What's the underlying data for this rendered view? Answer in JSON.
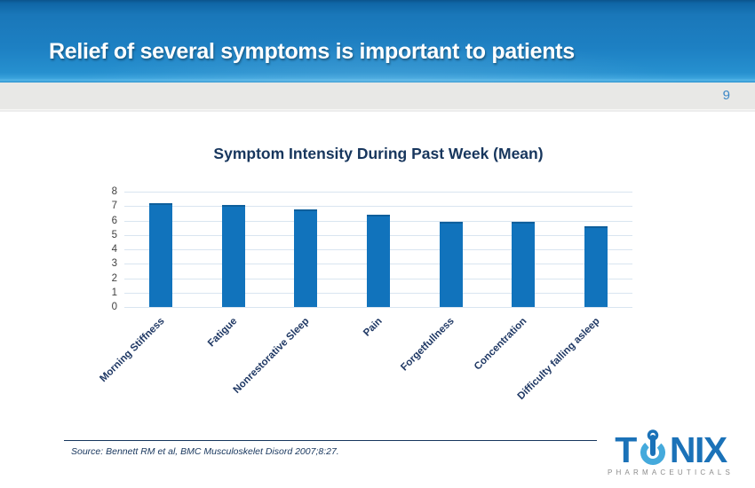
{
  "header": {
    "title": "Relief of several symptoms is important to patients"
  },
  "pagebar": {
    "page_number": "9"
  },
  "chart_data": {
    "type": "bar",
    "title": "Symptom Intensity During Past Week (Mean)",
    "categories": [
      "Morning Stiffness",
      "Fatigue",
      "Nonrestorative Sleep",
      "Pain",
      "Forgetfullness",
      "Concentration",
      "Difficulty falling asleep"
    ],
    "values": [
      7.2,
      7.1,
      6.8,
      6.4,
      5.9,
      5.9,
      5.6
    ],
    "xlabel": "",
    "ylabel": "",
    "ylim": [
      0,
      8
    ],
    "ytick_step": 1,
    "grid": true,
    "legend": false,
    "bar_color": "#1173bc"
  },
  "footer": {
    "source": "Source: Bennett RM et al, BMC Musculoskelet Disord 2007;8:27."
  },
  "logo": {
    "word_t": "T",
    "word_nix": "NIX",
    "tagline": "PHARMACEUTICALS"
  },
  "colors": {
    "header_blue": "#1d80c3",
    "navy": "#17365d",
    "bar_blue": "#1173bc",
    "bar_top_edge": "#0e5f9c",
    "gridline": "#d9e5f0",
    "logo_blue": "#1b72b8",
    "logo_cyan": "#45aadc",
    "page_number_blue": "#3c87c6",
    "pagebar_gray": "#e8e8e6"
  }
}
